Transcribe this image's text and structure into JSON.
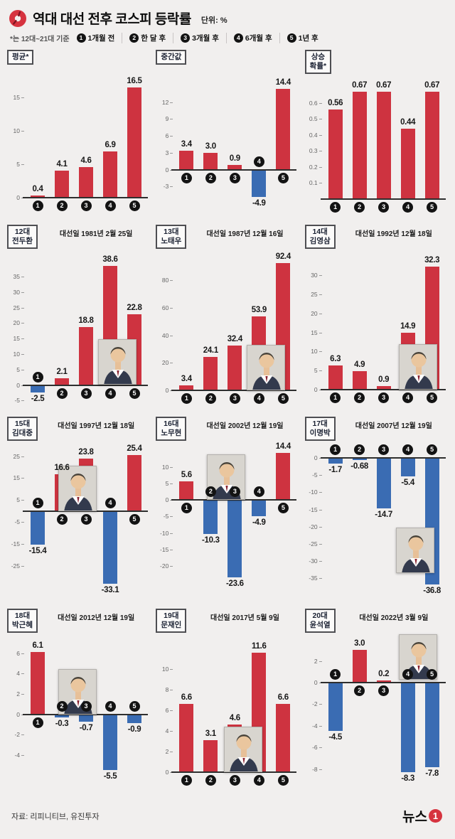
{
  "header": {
    "title": "역대 대선 전후 코스피 등락률",
    "unit": "단위: %",
    "note": "*는 12대~21대 기준",
    "legend": [
      {
        "num": "1",
        "label": "1개월 전"
      },
      {
        "num": "2",
        "label": "한 달 후"
      },
      {
        "num": "3",
        "label": "3개월 후"
      },
      {
        "num": "4",
        "label": "6개월 후"
      },
      {
        "num": "5",
        "label": "1년 후"
      }
    ]
  },
  "footer": {
    "source": "자료: 리피니티브, 유진투자",
    "brand": "뉴스",
    "brand_num": "1"
  },
  "colors": {
    "positive": "#ce3340",
    "negative": "#3a6cb3",
    "background": "#f1efee",
    "axis": "#2e2e2e",
    "badge": "#131313"
  },
  "chart_data": [
    {
      "id": "average",
      "type": "bar",
      "title_lines": [
        "평균*"
      ],
      "election_date": "",
      "categories": [
        "1",
        "2",
        "3",
        "4",
        "5"
      ],
      "values": [
        0.4,
        4.1,
        4.6,
        6.9,
        16.5
      ],
      "value_labels": [
        "0.4",
        "4.1",
        "4.6",
        "6.9",
        "16.5"
      ],
      "ylim": [
        -2.5,
        18.5
      ],
      "ticks": [
        15,
        10,
        5,
        0
      ],
      "tick_labels": [
        "15",
        "10",
        "5",
        "0"
      ],
      "photo": null
    },
    {
      "id": "median",
      "type": "bar",
      "title_lines": [
        "중간값"
      ],
      "election_date": "",
      "categories": [
        "1",
        "2",
        "3",
        "4",
        "5"
      ],
      "values": [
        3.4,
        3.0,
        0.9,
        -4.9,
        14.4
      ],
      "value_labels": [
        "3.4",
        "3.0",
        "0.9",
        "-4.9",
        "14.4"
      ],
      "ylim": [
        -8,
        17
      ],
      "ticks": [
        12,
        9,
        6,
        3,
        0,
        -3
      ],
      "tick_labels": [
        "12",
        "9",
        "6",
        "3",
        "0",
        "-3"
      ],
      "photo": null
    },
    {
      "id": "win-rate",
      "type": "bar",
      "title_lines": [
        "상승",
        "확률*"
      ],
      "election_date": "",
      "categories": [
        "1",
        "2",
        "3",
        "4",
        "5"
      ],
      "values": [
        0.56,
        0.67,
        0.67,
        0.44,
        0.67
      ],
      "value_labels": [
        "0.56",
        "0.67",
        "0.67",
        "0.44",
        "0.67"
      ],
      "ylim": [
        -0.1,
        0.78
      ],
      "ticks": [
        0.6,
        0.5,
        0.4,
        0.3,
        0.2,
        0.1
      ],
      "tick_labels": [
        "0.6",
        "0.5",
        "0.4",
        "0.3",
        "0.2",
        "0.1"
      ],
      "photo": null
    },
    {
      "id": "chun-doo-hwan",
      "type": "bar",
      "title_lines": [
        "12대",
        "전두환"
      ],
      "election_date": "대선일 1981년 2월 25일",
      "categories": [
        "1",
        "2",
        "3",
        "4",
        "5"
      ],
      "values": [
        -2.5,
        2.1,
        18.8,
        38.6,
        22.8
      ],
      "value_labels": [
        "-2.5",
        "2.1",
        "18.8",
        "38.6",
        "22.8"
      ],
      "ylim": [
        -7,
        44
      ],
      "ticks": [
        35,
        30,
        25,
        20,
        15,
        10,
        5,
        0,
        -5
      ],
      "tick_labels": [
        "35",
        "30",
        "25",
        "20",
        "15",
        "10",
        "5",
        "0",
        "-5"
      ],
      "photo": {
        "left": 128,
        "top": 127
      }
    },
    {
      "id": "roh-tae-woo",
      "type": "bar",
      "title_lines": [
        "13대",
        "노태우"
      ],
      "election_date": "대선일 1987년 12월 16일",
      "categories": [
        "1",
        "2",
        "3",
        "4",
        "5"
      ],
      "values": [
        3.4,
        24.1,
        32.4,
        53.9,
        92.4
      ],
      "value_labels": [
        "3.4",
        "24.1",
        "32.4",
        "53.9",
        "92.4"
      ],
      "ylim": [
        -12,
        103
      ],
      "ticks": [
        80,
        60,
        40,
        20,
        0
      ],
      "tick_labels": [
        "80",
        "60",
        "40",
        "20",
        "0"
      ],
      "photo": {
        "left": 128,
        "top": 135
      }
    },
    {
      "id": "kim-young-sam",
      "type": "bar",
      "title_lines": [
        "14대",
        "김영삼"
      ],
      "election_date": "대선일 1992년 12월 18일",
      "categories": [
        "1",
        "2",
        "3",
        "4",
        "5"
      ],
      "values": [
        6.3,
        4.9,
        0.9,
        14.9,
        32.3
      ],
      "value_labels": [
        "6.3",
        "4.9",
        "0.9",
        "14.9",
        "32.3"
      ],
      "ylim": [
        -4.5,
        37
      ],
      "ticks": [
        30,
        25,
        20,
        15,
        10,
        5,
        0
      ],
      "tick_labels": [
        "30",
        "25",
        "20",
        "15",
        "10",
        "5",
        "0"
      ],
      "photo": {
        "left": 132,
        "top": 134
      }
    },
    {
      "id": "kim-dae-jung",
      "type": "bar",
      "title_lines": [
        "15대",
        "김대중"
      ],
      "election_date": "대선일 1997년 12월 18일",
      "categories": [
        "1",
        "2",
        "3",
        "4",
        "5"
      ],
      "values": [
        -15.4,
        16.6,
        23.8,
        -33.1,
        25.4
      ],
      "value_labels": [
        "-15.4",
        "16.6",
        "23.8",
        "-33.1",
        "25.4"
      ],
      "ylim": [
        -40,
        32
      ],
      "ticks": [
        25,
        15,
        5,
        -5,
        -15,
        -25
      ],
      "tick_labels": [
        "25",
        "15",
        "5",
        "-5",
        "-15",
        "-25"
      ],
      "photo": {
        "left": 72,
        "top": 35
      }
    },
    {
      "id": "roh-moo-hyun",
      "type": "bar",
      "title_lines": [
        "16대",
        "노무현"
      ],
      "election_date": "대선일 2002년 12월 19일",
      "categories": [
        "1",
        "2",
        "3",
        "4",
        "5"
      ],
      "values": [
        5.6,
        -10.3,
        -23.6,
        -4.9,
        14.4
      ],
      "value_labels": [
        "5.6",
        "-10.3",
        "-23.6",
        "-4.9",
        "14.4"
      ],
      "ylim": [
        -30,
        18
      ],
      "ticks": [
        10,
        5,
        0,
        -5,
        -10,
        -15,
        -20
      ],
      "tick_labels": [
        "10",
        "5",
        "0",
        "-5",
        "-10",
        "-15",
        "-20"
      ],
      "photo": {
        "left": 72,
        "top": 19
      }
    },
    {
      "id": "lee-myung-bak",
      "type": "bar",
      "title_lines": [
        "17대",
        "이명박"
      ],
      "election_date": "대선일 2007년 12월 19일",
      "categories": [
        "1",
        "2",
        "3",
        "4",
        "5"
      ],
      "values": [
        -1.7,
        -0.68,
        -14.7,
        -5.4,
        -36.8
      ],
      "value_labels": [
        "-1.7",
        "-0.68",
        "-14.7",
        "-5.4",
        "-36.8"
      ],
      "ylim": [
        -41,
        5
      ],
      "ticks": [
        0,
        -5,
        -10,
        -15,
        -20,
        -25,
        -30,
        -35
      ],
      "tick_labels": [
        "0",
        "-5",
        "-10",
        "-15",
        "-20",
        "-25",
        "-30",
        "-35"
      ],
      "photo": {
        "left": 128,
        "top": 122
      }
    },
    {
      "id": "park-geun-hye",
      "type": "bar",
      "title_lines": [
        "18대",
        "박근혜"
      ],
      "election_date": "대선일 2012년 12월 19일",
      "categories": [
        "1",
        "2",
        "3",
        "4",
        "5"
      ],
      "values": [
        6.1,
        -0.3,
        -0.7,
        -5.5,
        -0.9
      ],
      "value_labels": [
        "6.1",
        "-0.3",
        "-0.7",
        "-5.5",
        "-0.9"
      ],
      "ylim": [
        -7.5,
        8
      ],
      "ticks": [
        6,
        4,
        2,
        0,
        -2,
        -4
      ],
      "tick_labels": [
        "6",
        "4",
        "2",
        "0",
        "-2",
        "-4"
      ],
      "photo": {
        "left": 72,
        "top": 51
      }
    },
    {
      "id": "moon-jae-in",
      "type": "bar",
      "title_lines": [
        "19대",
        "문재인"
      ],
      "election_date": "대선일 2017년 5월 9일",
      "categories": [
        "1",
        "2",
        "3",
        "4",
        "5"
      ],
      "values": [
        6.6,
        3.1,
        4.6,
        11.6,
        6.6
      ],
      "value_labels": [
        "6.6",
        "3.1",
        "4.6",
        "11.6",
        "6.6"
      ],
      "ylim": [
        -1.8,
        13.5
      ],
      "ticks": [
        10,
        8,
        6,
        4,
        2,
        0
      ],
      "tick_labels": [
        "10",
        "8",
        "6",
        "4",
        "2",
        "0"
      ],
      "photo": {
        "left": 96,
        "top": 132
      }
    },
    {
      "id": "yoon-suk-yeol",
      "type": "bar",
      "title_lines": [
        "20대",
        "윤석열"
      ],
      "election_date": "대선일 2022년 3월 9일",
      "categories": [
        "1",
        "2",
        "3",
        "4",
        "5"
      ],
      "values": [
        -4.5,
        3.0,
        0.2,
        -8.3,
        -7.8
      ],
      "value_labels": [
        "-4.5",
        "3.0",
        "0.2",
        "-8.3",
        "-7.8"
      ],
      "ylim": [
        -10,
        4.6
      ],
      "ticks": [
        2,
        0,
        -2,
        -4,
        -6,
        -8
      ],
      "tick_labels": [
        "2",
        "0",
        "-2",
        "-4",
        "-6",
        "-8"
      ],
      "photo": {
        "left": 132,
        "top": 2
      }
    }
  ]
}
